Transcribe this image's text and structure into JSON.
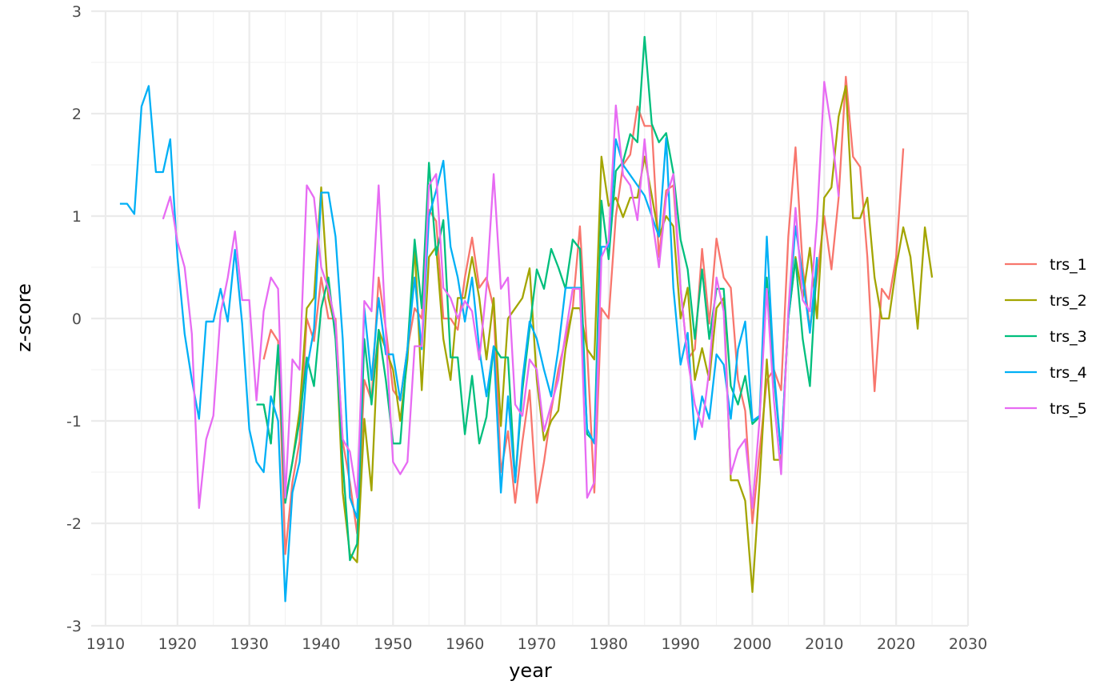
{
  "chart_data": {
    "type": "line",
    "title": "",
    "xlabel": "year",
    "ylabel": "z-score",
    "xlim": [
      1908,
      2030
    ],
    "ylim": [
      -3,
      3
    ],
    "x_ticks": [
      1910,
      1920,
      1930,
      1940,
      1950,
      1960,
      1970,
      1980,
      1990,
      2000,
      2010,
      2020,
      2030
    ],
    "y_ticks": [
      -3,
      -2,
      -1,
      0,
      1,
      2,
      3
    ],
    "grid": true,
    "legend_position": "right",
    "series": [
      {
        "name": "trs_1",
        "color": "#F8766D",
        "x": [
          1932,
          1933,
          1934,
          1935,
          1936,
          1937,
          1938,
          1939,
          1940,
          1941,
          1942,
          1943,
          1944,
          1945,
          1946,
          1947,
          1948,
          1949,
          1950,
          1951,
          1952,
          1953,
          1954,
          1955,
          1956,
          1957,
          1958,
          1959,
          1960,
          1961,
          1962,
          1963,
          1964,
          1965,
          1966,
          1967,
          1968,
          1969,
          1970,
          1971,
          1972,
          1973,
          1974,
          1975,
          1976,
          1977,
          1978,
          1979,
          1980,
          1981,
          1982,
          1983,
          1984,
          1985,
          1986,
          1987,
          1988,
          1989,
          1990,
          1991,
          1992,
          1993,
          1994,
          1995,
          1996,
          1997,
          1998,
          1999,
          2000,
          2001,
          2002,
          2003,
          2004,
          2005,
          2006,
          2007,
          2008,
          2009,
          2010,
          2011,
          2012,
          2013,
          2014,
          2015,
          2016,
          2017,
          2018,
          2019,
          2020,
          2021
        ],
        "y": [
          -0.4,
          -0.11,
          -0.22,
          -2.3,
          -1.6,
          -1.2,
          0.0,
          -0.22,
          0.4,
          0.0,
          0.0,
          -1.2,
          -1.6,
          -2.1,
          -0.6,
          -0.8,
          0.4,
          -0.1,
          -0.7,
          -0.8,
          -0.3,
          0.1,
          0.0,
          1.06,
          0.95,
          0.0,
          0.0,
          -0.11,
          0.4,
          0.79,
          0.3,
          0.4,
          0.1,
          -1.5,
          -1.1,
          -1.8,
          -1.2,
          -0.7,
          -1.8,
          -1.4,
          -0.9,
          -0.5,
          -0.2,
          0.1,
          0.9,
          -0.3,
          -1.7,
          0.1,
          0.0,
          1.0,
          1.5,
          1.6,
          2.07,
          1.88,
          1.88,
          0.6,
          1.25,
          1.3,
          0.3,
          -0.4,
          -0.3,
          0.68,
          -0.05,
          0.78,
          0.4,
          0.3,
          -0.6,
          -0.9,
          -2.0,
          -1.3,
          -0.6,
          -0.5,
          -0.7,
          0.8,
          1.67,
          0.5,
          -0.1,
          0.4,
          1.0,
          0.48,
          1.18,
          2.36,
          1.58,
          1.48,
          0.6,
          -0.71,
          0.29,
          0.19,
          0.6,
          1.66
        ]
      },
      {
        "name": "trs_2",
        "color": "#A3A500",
        "x": [
          1932,
          1933,
          1934,
          1935,
          1936,
          1937,
          1938,
          1939,
          1940,
          1941,
          1942,
          1943,
          1944,
          1945,
          1946,
          1947,
          1948,
          1949,
          1950,
          1951,
          1952,
          1953,
          1954,
          1955,
          1956,
          1957,
          1958,
          1959,
          1960,
          1961,
          1962,
          1963,
          1964,
          1965,
          1966,
          1967,
          1968,
          1969,
          1970,
          1971,
          1972,
          1973,
          1974,
          1975,
          1976,
          1977,
          1978,
          1979,
          1980,
          1981,
          1982,
          1983,
          1984,
          1985,
          1986,
          1987,
          1988,
          1989,
          1990,
          1991,
          1992,
          1993,
          1994,
          1995,
          1996,
          1997,
          1998,
          1999,
          2000,
          2001,
          2002,
          2003,
          2004,
          2005,
          2006,
          2007,
          2008,
          2009,
          2010,
          2011,
          2012,
          2013,
          2014,
          2015,
          2016,
          2017,
          2018,
          2019,
          2020,
          2021,
          2022,
          2023,
          2024,
          2025
        ],
        "y": [
          -0.84,
          -1.22,
          -0.3,
          -1.78,
          -1.4,
          -0.9,
          0.1,
          0.2,
          1.28,
          0.2,
          -0.1,
          -1.7,
          -2.3,
          -2.38,
          -0.98,
          -1.68,
          -0.11,
          -0.3,
          -0.5,
          -1.0,
          -0.4,
          0.7,
          -0.7,
          0.6,
          0.7,
          -0.2,
          -0.6,
          0.2,
          0.2,
          0.6,
          0.2,
          -0.4,
          0.2,
          -1.05,
          0.0,
          0.1,
          0.2,
          0.49,
          -0.6,
          -1.19,
          -1.0,
          -0.9,
          -0.3,
          0.1,
          0.1,
          -0.3,
          -0.4,
          1.58,
          1.1,
          1.18,
          0.99,
          1.18,
          1.18,
          1.58,
          1.2,
          0.8,
          1.0,
          0.9,
          0.0,
          0.3,
          -0.6,
          -0.29,
          -0.6,
          0.1,
          0.2,
          -1.58,
          -1.58,
          -1.78,
          -2.67,
          -1.6,
          -0.4,
          -1.38,
          -1.38,
          0.0,
          0.6,
          0.2,
          0.69,
          0.0,
          1.18,
          1.28,
          1.97,
          2.27,
          0.98,
          0.98,
          1.18,
          0.4,
          0.0,
          0.0,
          0.5,
          0.89,
          0.6,
          -0.1,
          0.89,
          0.4
        ]
      },
      {
        "name": "trs_3",
        "color": "#00BF7D",
        "x": [
          1931,
          1932,
          1933,
          1934,
          1935,
          1936,
          1937,
          1938,
          1939,
          1940,
          1941,
          1942,
          1943,
          1944,
          1945,
          1946,
          1947,
          1948,
          1949,
          1950,
          1951,
          1952,
          1953,
          1954,
          1955,
          1956,
          1957,
          1958,
          1959,
          1960,
          1961,
          1962,
          1963,
          1964,
          1965,
          1966,
          1967,
          1968,
          1969,
          1970,
          1971,
          1972,
          1973,
          1974,
          1975,
          1976,
          1977,
          1978,
          1979,
          1980,
          1981,
          1982,
          1983,
          1984,
          1985,
          1986,
          1987,
          1988,
          1989,
          1990,
          1991,
          1992,
          1993,
          1994,
          1995,
          1996,
          1997,
          1998,
          1999,
          2000,
          2001,
          2002,
          2003,
          2004,
          2005,
          2006,
          2007,
          2008,
          2009
        ],
        "y": [
          -0.84,
          -0.84,
          -1.22,
          -0.26,
          -1.8,
          -1.4,
          -1.0,
          -0.38,
          -0.66,
          0.1,
          0.4,
          -0.2,
          -1.4,
          -2.36,
          -2.2,
          -0.2,
          -0.84,
          -0.11,
          -0.6,
          -1.22,
          -1.22,
          -0.3,
          0.77,
          0.1,
          1.52,
          0.62,
          0.96,
          -0.38,
          -0.38,
          -1.13,
          -0.56,
          -1.22,
          -0.96,
          -0.27,
          -0.38,
          -0.38,
          -1.6,
          -0.7,
          -0.1,
          0.48,
          0.29,
          0.68,
          0.5,
          0.29,
          0.77,
          0.68,
          -1.13,
          -1.2,
          1.15,
          0.58,
          1.44,
          1.53,
          1.8,
          1.72,
          2.75,
          1.9,
          1.72,
          1.81,
          1.42,
          0.77,
          0.48,
          -0.2,
          0.48,
          -0.2,
          0.29,
          0.29,
          -0.66,
          -0.84,
          -0.56,
          -1.03,
          -0.96,
          0.4,
          -0.56,
          -1.32,
          0.0,
          0.58,
          -0.2,
          -0.66,
          0.58
        ]
      },
      {
        "name": "trs_4",
        "color": "#00B0F6",
        "x": [
          1912,
          1913,
          1914,
          1915,
          1916,
          1917,
          1918,
          1919,
          1920,
          1921,
          1922,
          1923,
          1924,
          1925,
          1926,
          1927,
          1928,
          1929,
          1930,
          1931,
          1932,
          1933,
          1934,
          1935,
          1936,
          1937,
          1938,
          1939,
          1940,
          1941,
          1942,
          1943,
          1944,
          1945,
          1946,
          1947,
          1948,
          1949,
          1950,
          1951,
          1952,
          1953,
          1954,
          1955,
          1956,
          1957,
          1958,
          1959,
          1960,
          1961,
          1962,
          1963,
          1964,
          1965,
          1966,
          1967,
          1968,
          1969,
          1970,
          1971,
          1972,
          1973,
          1974,
          1975,
          1976,
          1977,
          1978,
          1979,
          1980,
          1981,
          1982,
          1983,
          1984,
          1985,
          1986,
          1987,
          1988,
          1989,
          1990,
          1991,
          1992,
          1993,
          1994,
          1995,
          1996,
          1997,
          1998,
          1999,
          2000,
          2001,
          2002,
          2003,
          2004,
          2005,
          2006,
          2007,
          2008,
          2009
        ],
        "y": [
          1.12,
          1.12,
          1.02,
          2.07,
          2.27,
          1.43,
          1.43,
          1.75,
          0.6,
          -0.15,
          -0.6,
          -0.98,
          -0.03,
          -0.03,
          0.29,
          -0.03,
          0.67,
          -0.05,
          -1.08,
          -1.4,
          -1.5,
          -0.76,
          -1.0,
          -2.76,
          -1.7,
          -1.4,
          -0.5,
          -0.1,
          1.23,
          1.23,
          0.8,
          -0.2,
          -1.75,
          -1.95,
          0.1,
          -0.6,
          0.2,
          -0.35,
          -0.35,
          -0.8,
          -0.3,
          0.4,
          -0.3,
          1.0,
          1.25,
          1.54,
          0.7,
          0.4,
          -0.03,
          0.4,
          -0.3,
          -0.76,
          -0.27,
          -1.7,
          -0.76,
          -1.6,
          -0.6,
          -0.03,
          -0.2,
          -0.5,
          -0.76,
          -0.3,
          0.3,
          0.3,
          0.3,
          -1.08,
          -1.22,
          0.7,
          0.7,
          1.75,
          1.5,
          1.4,
          1.3,
          1.2,
          1.0,
          0.8,
          1.76,
          0.3,
          -0.45,
          -0.14,
          -1.18,
          -0.76,
          -0.98,
          -0.35,
          -0.45,
          -0.98,
          -0.3,
          -0.03,
          -1.0,
          -0.95,
          0.8,
          -0.5,
          -1.32,
          0.0,
          0.9,
          0.4,
          -0.14,
          0.6
        ]
      },
      {
        "name": "trs_5",
        "color": "#E76BF3",
        "x": [
          1918,
          1919,
          1920,
          1921,
          1922,
          1923,
          1924,
          1925,
          1926,
          1927,
          1928,
          1929,
          1930,
          1931,
          1932,
          1933,
          1934,
          1935,
          1936,
          1937,
          1938,
          1939,
          1940,
          1941,
          1942,
          1943,
          1944,
          1945,
          1946,
          1947,
          1948,
          1949,
          1950,
          1951,
          1952,
          1953,
          1954,
          1955,
          1956,
          1957,
          1958,
          1959,
          1960,
          1961,
          1962,
          1963,
          1964,
          1965,
          1966,
          1967,
          1968,
          1969,
          1970,
          1971,
          1972,
          1973,
          1974,
          1975,
          1976,
          1977,
          1978,
          1979,
          1980,
          1981,
          1982,
          1983,
          1984,
          1985,
          1986,
          1987,
          1988,
          1989,
          1990,
          1991,
          1992,
          1993,
          1994,
          1995,
          1996,
          1997,
          1998,
          1999,
          2000,
          2001,
          2002,
          2003,
          2004,
          2005,
          2006,
          2007,
          2008,
          2009,
          2010,
          2011,
          2012
        ],
        "y": [
          0.97,
          1.19,
          0.75,
          0.5,
          -0.15,
          -1.85,
          -1.18,
          -0.95,
          0.05,
          0.4,
          0.85,
          0.18,
          0.18,
          -0.8,
          0.07,
          0.4,
          0.29,
          -1.75,
          -0.4,
          -0.5,
          1.3,
          1.18,
          0.5,
          0.29,
          -0.05,
          -1.18,
          -1.3,
          -1.75,
          0.17,
          0.07,
          1.3,
          -0.15,
          -1.4,
          -1.52,
          -1.4,
          -0.27,
          -0.27,
          1.3,
          1.41,
          0.3,
          0.2,
          0.0,
          0.17,
          0.07,
          -0.4,
          0.3,
          1.41,
          0.29,
          0.4,
          -0.84,
          -0.95,
          -0.4,
          -0.5,
          -1.1,
          -0.84,
          -0.6,
          -0.15,
          0.29,
          0.29,
          -1.75,
          -1.6,
          0.6,
          0.75,
          2.08,
          1.4,
          1.3,
          0.96,
          1.75,
          1.0,
          0.5,
          1.18,
          1.41,
          0.3,
          -0.4,
          -0.84,
          -1.06,
          -0.5,
          0.4,
          0.07,
          -1.52,
          -1.28,
          -1.18,
          -1.85,
          -0.98,
          0.29,
          -0.8,
          -1.52,
          0.07,
          1.08,
          0.18,
          0.07,
          0.96,
          2.31,
          1.85,
          1.19
        ]
      }
    ]
  }
}
